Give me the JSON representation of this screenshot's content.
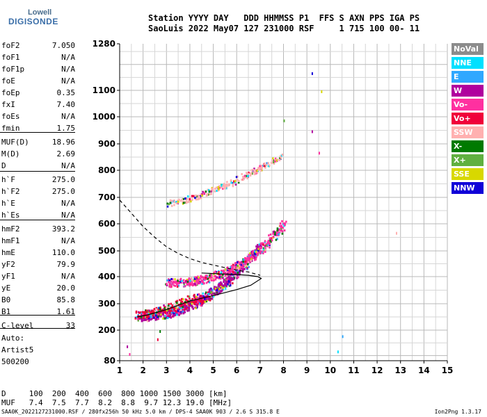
{
  "logo": {
    "top": "Lowell",
    "bottom": "DIGISONDE"
  },
  "header": {
    "line1": "Station YYYY DAY   DDD HHMMSS P1  FFS S AXN PPS IGA PS",
    "line2": "SaoLuis 2022 May07 127 231000 RSF     1 715 100 00- 11"
  },
  "params": [
    {
      "name": "foF2",
      "value": "7.050"
    },
    {
      "name": "foF1",
      "value": "N/A"
    },
    {
      "name": "foF1p",
      "value": "N/A"
    },
    {
      "name": "foE",
      "value": "N/A"
    },
    {
      "name": "foEp",
      "value": "0.35"
    },
    {
      "name": "fxI",
      "value": "7.40"
    },
    {
      "name": "foEs",
      "value": "N/A"
    },
    {
      "name": "fmin",
      "value": "1.75"
    },
    {
      "name": "MUF(D)",
      "value": "18.96"
    },
    {
      "name": "M(D)",
      "value": "2.69"
    },
    {
      "name": "D",
      "value": "N/A"
    },
    {
      "name": "h`F",
      "value": "275.0"
    },
    {
      "name": "h`F2",
      "value": "275.0"
    },
    {
      "name": "h`E",
      "value": "N/A"
    },
    {
      "name": "h`Es",
      "value": "N/A"
    },
    {
      "name": "hmF2",
      "value": "393.2"
    },
    {
      "name": "hmF1",
      "value": "N/A"
    },
    {
      "name": "hmE",
      "value": "110.0"
    },
    {
      "name": "yF2",
      "value": "79.9"
    },
    {
      "name": "yF1",
      "value": "N/A"
    },
    {
      "name": "yE",
      "value": "20.0"
    },
    {
      "name": "B0",
      "value": "85.8"
    },
    {
      "name": "B1",
      "value": "1.61"
    },
    {
      "name": "C-level",
      "value": "33"
    }
  ],
  "auto_block": [
    "Auto:",
    "Artist5",
    "500200"
  ],
  "legend": [
    {
      "label": "NoVal",
      "color": "#8c8c8c"
    },
    {
      "label": "NNE",
      "color": "#00e0ff"
    },
    {
      "label": "E",
      "color": "#30a8ff"
    },
    {
      "label": "W",
      "color": "#b0009e"
    },
    {
      "label": "Vo-",
      "color": "#ff30a0"
    },
    {
      "label": "Vo+",
      "color": "#f0003a"
    },
    {
      "label": "SSW",
      "color": "#ffb0b0"
    },
    {
      "label": "X-",
      "color": "#007a00"
    },
    {
      "label": "X+",
      "color": "#60b040"
    },
    {
      "label": "SSE",
      "color": "#d8d800"
    },
    {
      "label": "NNW",
      "color": "#1000d8"
    }
  ],
  "dist_table": {
    "line1": "D     100  200  400  600  800 1000 1500 3000 [km]",
    "line2": "MUF   7.4  7.5  7.7  8.2  8.8  9.7 12.3 19.0 [MHz]"
  },
  "footer": "SAA0K_2022127231000.RSF / 280fx256h 50 kHz 5.0 km / DPS-4 SAA0K 903 / 2.6 S 315.8 E",
  "version": "Ion2Png 1.3.17",
  "chart_data": {
    "type": "scatter",
    "xlim": [
      1,
      15
    ],
    "ylim": [
      80,
      1280
    ],
    "x_ticks": [
      1,
      2,
      3,
      4,
      5,
      6,
      7,
      8,
      9,
      10,
      11,
      12,
      13,
      14,
      15
    ],
    "y_ticks": [
      80,
      200,
      300,
      400,
      500,
      600,
      700,
      800,
      900,
      1000,
      1100,
      1280
    ],
    "grid": true,
    "profile_solid": [
      [
        1.75,
        250
      ],
      [
        2.2,
        258
      ],
      [
        3.0,
        278
      ],
      [
        4.0,
        310
      ],
      [
        5.0,
        330
      ],
      [
        6.0,
        352
      ],
      [
        6.6,
        368
      ],
      [
        7.05,
        393
      ],
      [
        6.9,
        400
      ],
      [
        6.5,
        405
      ],
      [
        6.0,
        408
      ],
      [
        5.0,
        412
      ],
      [
        4.5,
        414
      ]
    ],
    "profile_dashed": [
      [
        1.0,
        690
      ],
      [
        1.5,
        640
      ],
      [
        2.0,
        590
      ],
      [
        2.5,
        550
      ],
      [
        3.0,
        515
      ],
      [
        3.5,
        490
      ],
      [
        4.0,
        470
      ],
      [
        4.5,
        455
      ],
      [
        5.0,
        445
      ],
      [
        5.5,
        435
      ],
      [
        6.0,
        425
      ],
      [
        6.5,
        418
      ],
      [
        7.0,
        405
      ]
    ],
    "traces": [
      {
        "name": "o-trace-F2",
        "color_key": "W",
        "from": [
          1.8,
          255
        ],
        "to": [
          7.0,
          520
        ],
        "curve": 2.2,
        "spread": 0.12,
        "hspread": 35,
        "n": 700
      },
      {
        "name": "x-trace-F2",
        "color_key": "Vo-",
        "from": [
          3.0,
          380
        ],
        "to": [
          8.0,
          600
        ],
        "curve": 2.4,
        "spread": 0.12,
        "hspread": 30,
        "n": 500
      },
      {
        "name": "low-scatter",
        "color_key": "Vo+",
        "from": [
          1.8,
          260
        ],
        "to": [
          4.5,
          330
        ],
        "curve": 1.5,
        "spread": 0.35,
        "hspread": 30,
        "n": 250
      },
      {
        "name": "multi-hop",
        "color_key": "SSW",
        "from": [
          3.0,
          680
        ],
        "to": [
          8.0,
          860
        ],
        "curve": 1.4,
        "spread": 0.1,
        "hspread": 22,
        "n": 260
      }
    ],
    "sparse_points": [
      [
        1.3,
        140
      ],
      [
        1.4,
        110
      ],
      [
        2.6,
        168
      ],
      [
        2.7,
        200
      ],
      [
        8.0,
        990
      ],
      [
        9.2,
        1170
      ],
      [
        9.6,
        1100
      ],
      [
        12.8,
        570
      ],
      [
        10.5,
        180
      ],
      [
        10.3,
        120
      ],
      [
        9.2,
        950
      ],
      [
        9.5,
        870
      ]
    ]
  }
}
